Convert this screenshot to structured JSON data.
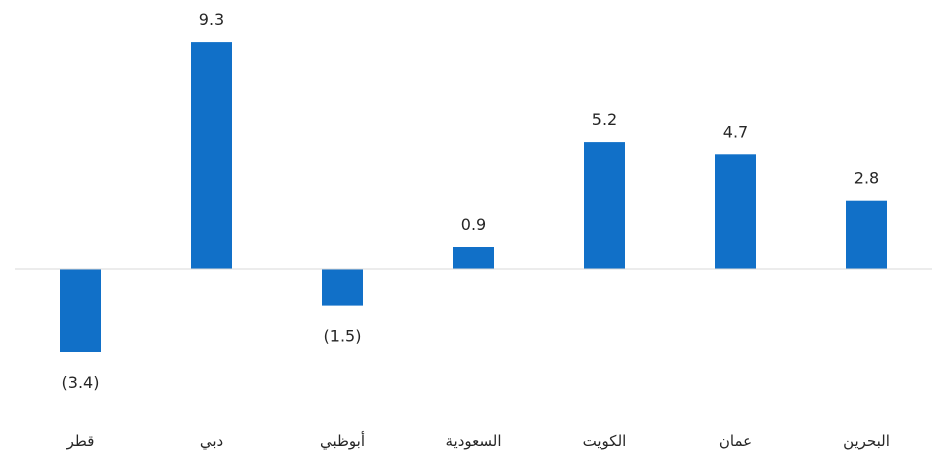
{
  "chart_data": {
    "type": "bar",
    "title": "",
    "xlabel": "",
    "ylabel": "",
    "categories": [
      "قطر",
      "دبي",
      "أبوظبي",
      "السعودية",
      "الكويت",
      "عمان",
      "البحرين"
    ],
    "values": [
      -3.4,
      9.3,
      -1.5,
      0.9,
      5.2,
      4.7,
      2.8
    ],
    "value_labels": [
      "(3.4)",
      "9.3",
      "(1.5)",
      "0.9",
      "5.2",
      "4.7",
      "2.8"
    ],
    "ylim": [
      -3.4,
      9.3
    ],
    "grid": false,
    "legend": "none",
    "colors": {
      "bar": "#1170c8",
      "axis": "#d9d9d9",
      "text": "#262626"
    }
  }
}
